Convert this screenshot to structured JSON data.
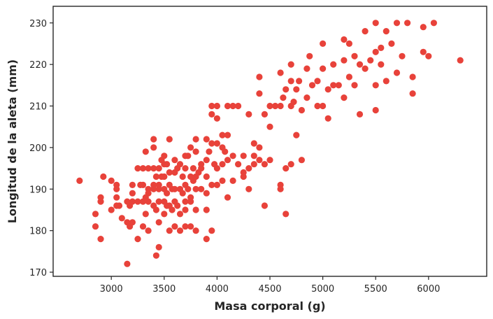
{
  "chart_data": {
    "type": "scatter",
    "title": "",
    "xlabel": "Masa corporal (g)",
    "ylabel": "Longitud de la aleta (mm)",
    "xlim": [
      2450,
      6550
    ],
    "ylim": [
      169,
      234
    ],
    "xticks": [
      3000,
      3500,
      4000,
      4500,
      5000,
      5500,
      6000
    ],
    "yticks": [
      170,
      180,
      190,
      200,
      210,
      220,
      230
    ],
    "grid": false,
    "legend": "none",
    "point_color": "#e8423a",
    "series": [
      {
        "points": [
          [
            2700,
            192
          ],
          [
            2850,
            184
          ],
          [
            2850,
            181
          ],
          [
            2900,
            188
          ],
          [
            2900,
            187
          ],
          [
            2900,
            178
          ],
          [
            2925,
            193
          ],
          [
            3000,
            192
          ],
          [
            3000,
            185
          ],
          [
            3050,
            191
          ],
          [
            3050,
            186
          ],
          [
            3050,
            188
          ],
          [
            3050,
            190
          ],
          [
            3075,
            186
          ],
          [
            3100,
            183
          ],
          [
            3150,
            187
          ],
          [
            3150,
            172
          ],
          [
            3150,
            182
          ],
          [
            3175,
            181
          ],
          [
            3175,
            186
          ],
          [
            3200,
            191
          ],
          [
            3200,
            189
          ],
          [
            3200,
            182
          ],
          [
            3200,
            187
          ],
          [
            3250,
            195
          ],
          [
            3250,
            187
          ],
          [
            3250,
            178
          ],
          [
            3275,
            191
          ],
          [
            3300,
            195
          ],
          [
            3300,
            191
          ],
          [
            3300,
            187
          ],
          [
            3300,
            181
          ],
          [
            3325,
            188
          ],
          [
            3325,
            184
          ],
          [
            3325,
            199
          ],
          [
            3350,
            195
          ],
          [
            3350,
            190
          ],
          [
            3350,
            189
          ],
          [
            3350,
            187
          ],
          [
            3350,
            180
          ],
          [
            3400,
            195
          ],
          [
            3400,
            191
          ],
          [
            3400,
            190
          ],
          [
            3400,
            186
          ],
          [
            3400,
            200
          ],
          [
            3400,
            202
          ],
          [
            3425,
            193
          ],
          [
            3425,
            185
          ],
          [
            3425,
            174
          ],
          [
            3450,
            195
          ],
          [
            3450,
            190
          ],
          [
            3450,
            187
          ],
          [
            3450,
            182
          ],
          [
            3450,
            176
          ],
          [
            3450,
            191
          ],
          [
            3475,
            193
          ],
          [
            3475,
            197
          ],
          [
            3500,
            193
          ],
          [
            3500,
            190
          ],
          [
            3500,
            187
          ],
          [
            3500,
            184
          ],
          [
            3500,
            196
          ],
          [
            3500,
            198
          ],
          [
            3525,
            196
          ],
          [
            3525,
            189
          ],
          [
            3525,
            186
          ],
          [
            3550,
            194
          ],
          [
            3550,
            191
          ],
          [
            3550,
            186
          ],
          [
            3550,
            180
          ],
          [
            3550,
            202
          ],
          [
            3575,
            190
          ],
          [
            3575,
            185
          ],
          [
            3600,
            194
          ],
          [
            3600,
            190
          ],
          [
            3600,
            187
          ],
          [
            3600,
            181
          ],
          [
            3600,
            197
          ],
          [
            3625,
            195
          ],
          [
            3625,
            186
          ],
          [
            3650,
            196
          ],
          [
            3650,
            190
          ],
          [
            3650,
            184
          ],
          [
            3650,
            180
          ],
          [
            3675,
            193
          ],
          [
            3675,
            189
          ],
          [
            3700,
            198
          ],
          [
            3700,
            195
          ],
          [
            3700,
            191
          ],
          [
            3700,
            187
          ],
          [
            3700,
            185
          ],
          [
            3700,
            181
          ],
          [
            3725,
            190
          ],
          [
            3725,
            198
          ],
          [
            3750,
            193
          ],
          [
            3750,
            188
          ],
          [
            3750,
            187
          ],
          [
            3750,
            181
          ],
          [
            3750,
            200
          ],
          [
            3775,
            195
          ],
          [
            3775,
            192
          ],
          [
            3800,
            199
          ],
          [
            3800,
            193
          ],
          [
            3800,
            190
          ],
          [
            3800,
            185
          ],
          [
            3800,
            180
          ],
          [
            3800,
            202
          ],
          [
            3825,
            194
          ],
          [
            3850,
            195
          ],
          [
            3850,
            190
          ],
          [
            3850,
            196
          ],
          [
            3900,
            197
          ],
          [
            3900,
            193
          ],
          [
            3900,
            189
          ],
          [
            3900,
            185
          ],
          [
            3900,
            178
          ],
          [
            3900,
            202
          ],
          [
            3925,
            199
          ],
          [
            3950,
            201
          ],
          [
            3950,
            191
          ],
          [
            3950,
            180
          ],
          [
            3950,
            208
          ],
          [
            3950,
            210
          ],
          [
            3975,
            196
          ],
          [
            4000,
            201
          ],
          [
            4000,
            195
          ],
          [
            4000,
            191
          ],
          [
            4000,
            210
          ],
          [
            4000,
            207
          ],
          [
            4050,
            203
          ],
          [
            4050,
            200
          ],
          [
            4050,
            196
          ],
          [
            4050,
            192
          ],
          [
            4075,
            199
          ],
          [
            4100,
            203
          ],
          [
            4100,
            197
          ],
          [
            4100,
            188
          ],
          [
            4100,
            210
          ],
          [
            4150,
            210
          ],
          [
            4150,
            192
          ],
          [
            4150,
            198
          ],
          [
            4200,
            196
          ],
          [
            4200,
            210
          ],
          [
            4250,
            194
          ],
          [
            4250,
            193
          ],
          [
            4250,
            198
          ],
          [
            4300,
            195
          ],
          [
            4300,
            190
          ],
          [
            4300,
            208
          ],
          [
            4350,
            198
          ],
          [
            4350,
            196
          ],
          [
            4350,
            201
          ],
          [
            4400,
            200
          ],
          [
            4400,
            197
          ],
          [
            4400,
            213
          ],
          [
            4400,
            217
          ],
          [
            4450,
            196
          ],
          [
            4450,
            186
          ],
          [
            4450,
            208
          ],
          [
            4500,
            197
          ],
          [
            4500,
            205
          ],
          [
            4500,
            210
          ],
          [
            4550,
            210
          ],
          [
            4600,
            191
          ],
          [
            4600,
            190
          ],
          [
            4600,
            210
          ],
          [
            4600,
            218
          ],
          [
            4625,
            212
          ],
          [
            4650,
            184
          ],
          [
            4650,
            195
          ],
          [
            4650,
            214
          ],
          [
            4700,
            196
          ],
          [
            4700,
            210
          ],
          [
            4700,
            216
          ],
          [
            4700,
            220
          ],
          [
            4725,
            211
          ],
          [
            4750,
            203
          ],
          [
            4750,
            214
          ],
          [
            4775,
            216
          ],
          [
            4800,
            197
          ],
          [
            4800,
            209
          ],
          [
            4850,
            212
          ],
          [
            4850,
            219
          ],
          [
            4875,
            222
          ],
          [
            4900,
            215
          ],
          [
            4950,
            210
          ],
          [
            4950,
            216
          ],
          [
            5000,
            219
          ],
          [
            5000,
            210
          ],
          [
            5000,
            225
          ],
          [
            5050,
            207
          ],
          [
            5050,
            214
          ],
          [
            5100,
            215
          ],
          [
            5100,
            220
          ],
          [
            5150,
            215
          ],
          [
            5200,
            212
          ],
          [
            5200,
            221
          ],
          [
            5200,
            226
          ],
          [
            5250,
            217
          ],
          [
            5250,
            225
          ],
          [
            5300,
            215
          ],
          [
            5300,
            222
          ],
          [
            5350,
            208
          ],
          [
            5350,
            220
          ],
          [
            5400,
            219
          ],
          [
            5400,
            228
          ],
          [
            5450,
            221
          ],
          [
            5500,
            209
          ],
          [
            5500,
            215
          ],
          [
            5500,
            223
          ],
          [
            5500,
            230
          ],
          [
            5550,
            220
          ],
          [
            5550,
            224
          ],
          [
            5600,
            216
          ],
          [
            5600,
            228
          ],
          [
            5650,
            225
          ],
          [
            5700,
            218
          ],
          [
            5700,
            230
          ],
          [
            5750,
            222
          ],
          [
            5800,
            230
          ],
          [
            5850,
            213
          ],
          [
            5850,
            217
          ],
          [
            5950,
            223
          ],
          [
            5950,
            229
          ],
          [
            6000,
            222
          ],
          [
            6050,
            230
          ],
          [
            6300,
            221
          ]
        ]
      }
    ]
  }
}
